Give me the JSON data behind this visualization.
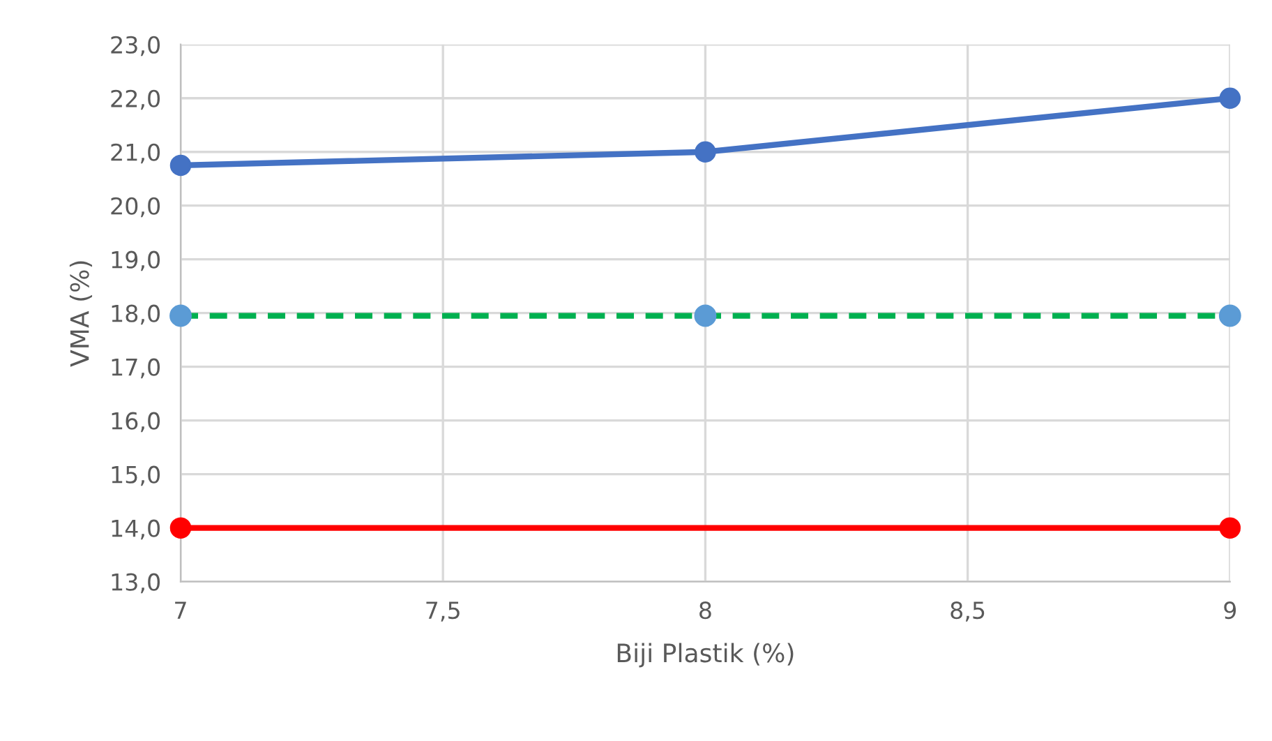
{
  "chart_data": {
    "type": "line",
    "xlabel": "Biji Plastik (%)",
    "ylabel": "VMA (%)",
    "xlim": [
      7,
      9
    ],
    "ylim": [
      13,
      23
    ],
    "xticks": [
      7,
      {
        "value": 7.5,
        "label": "7,5"
      },
      8,
      {
        "value": 8.5,
        "label": "8,5"
      },
      9
    ],
    "yticks": [
      {
        "value": 13,
        "label": "13,0"
      },
      {
        "value": 14,
        "label": "14,0"
      },
      {
        "value": 15,
        "label": "15,0"
      },
      {
        "value": 16,
        "label": "16,0"
      },
      {
        "value": 17,
        "label": "17,0"
      },
      {
        "value": 18,
        "label": "18,0"
      },
      {
        "value": 19,
        "label": "19,0"
      },
      {
        "value": 20,
        "label": "20,0"
      },
      {
        "value": 21,
        "label": "21,0"
      },
      {
        "value": 22,
        "label": "22,0"
      },
      {
        "value": 23,
        "label": "23,0"
      }
    ],
    "grid": true,
    "legend": false,
    "series": [
      {
        "color": "#4472c4",
        "x": [
          7,
          8,
          9
        ],
        "values": [
          20.75,
          21.0,
          22.0
        ],
        "marker": "circle",
        "line_style": "solid"
      },
      {
        "color": "#00b050",
        "x": [
          7,
          8,
          9
        ],
        "values": [
          17.95,
          17.95,
          17.95
        ],
        "marker": "none",
        "line_style": "dashed"
      },
      {
        "type": "scatter",
        "color": "#5b9bd5",
        "x": [
          7,
          8,
          9
        ],
        "values": [
          17.95,
          17.95,
          17.95
        ],
        "marker": "circle"
      },
      {
        "color": "#ff0000",
        "x": [
          7,
          9
        ],
        "values": [
          14.0,
          14.0
        ],
        "marker": "circle",
        "line_style": "solid"
      }
    ]
  }
}
